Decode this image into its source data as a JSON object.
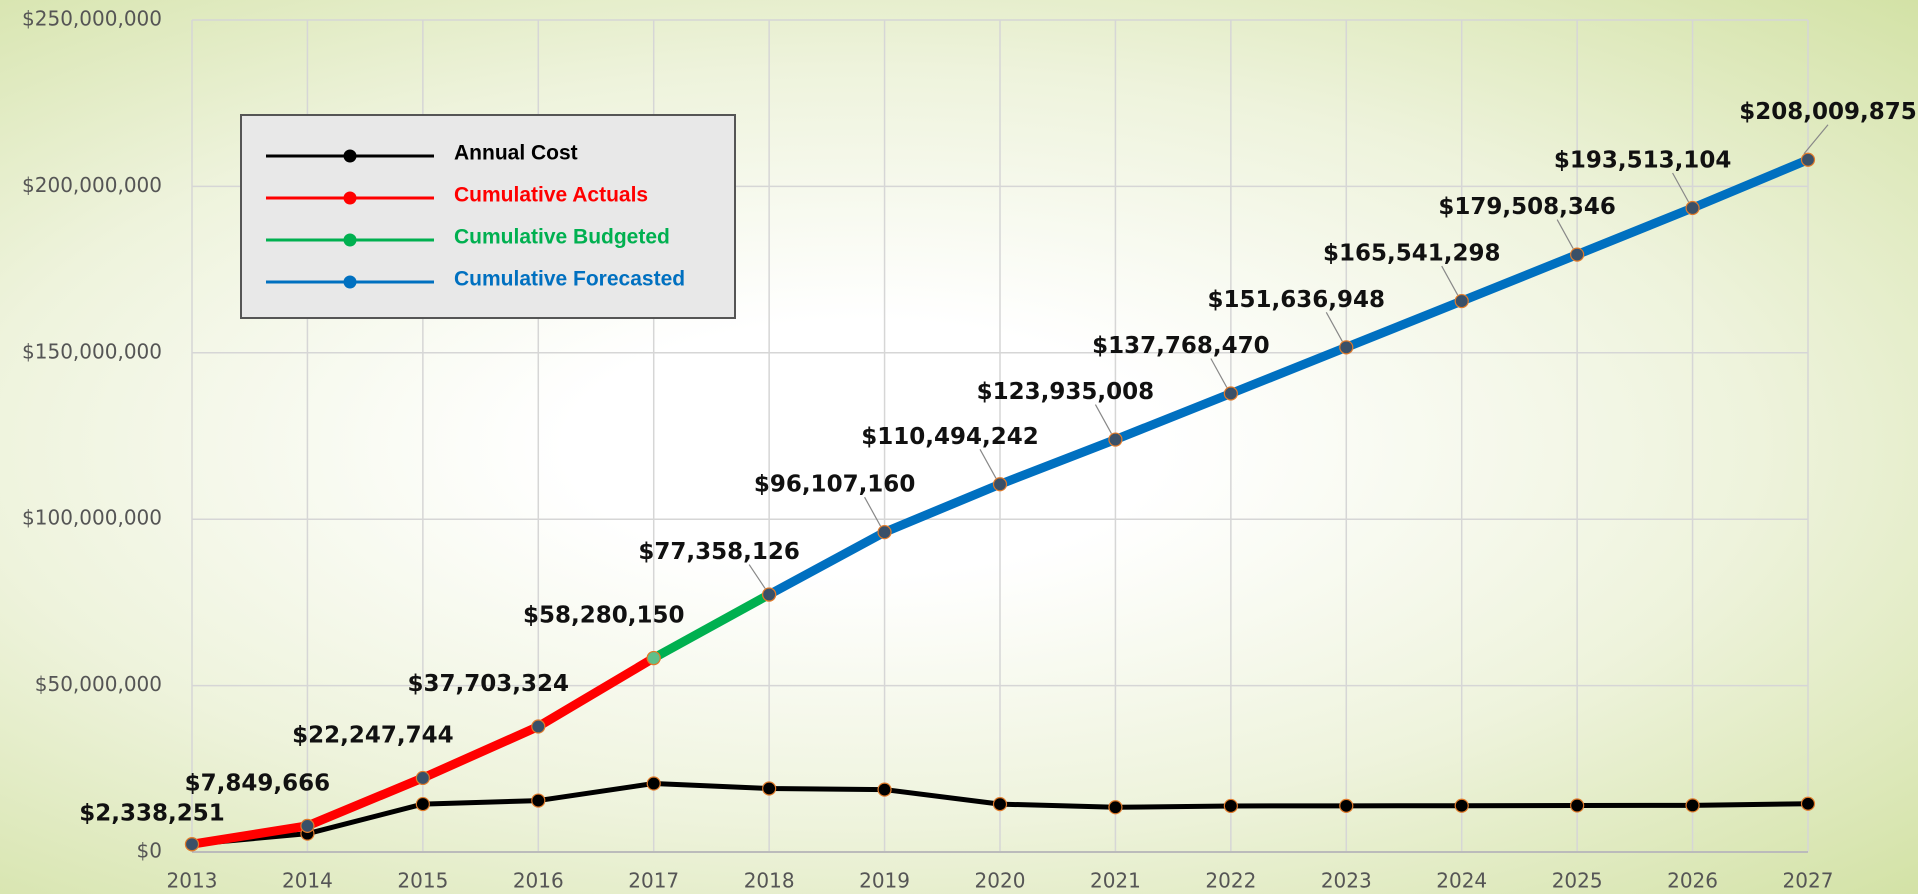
{
  "chart_data": {
    "type": "line",
    "categories": [
      "2013",
      "2014",
      "2015",
      "2016",
      "2017",
      "2018",
      "2019",
      "2020",
      "2021",
      "2022",
      "2023",
      "2024",
      "2025",
      "2026",
      "2027"
    ],
    "series": [
      {
        "name": "Annual Cost",
        "color": "#000000",
        "values": [
          2338251,
          5511415,
          14398078,
          15455580,
          20576826,
          19077976,
          18749034,
          14387082,
          13440766,
          13833462,
          13868478,
          13904350,
          13967048,
          14004758,
          14496771
        ]
      },
      {
        "name": "Cumulative Actuals",
        "color": "#ff0000",
        "values": [
          2338251,
          7849666,
          22247744,
          37703324,
          58280150,
          null,
          null,
          null,
          null,
          null,
          null,
          null,
          null,
          null,
          null
        ],
        "value_labels": [
          "$2,338,251",
          "$7,849,666",
          "$22,247,744",
          "$37,703,324",
          "$58,280,150",
          null,
          null,
          null,
          null,
          null,
          null,
          null,
          null,
          null,
          null
        ]
      },
      {
        "name": "Cumulative Budgeted",
        "color": "#00b050",
        "values": [
          null,
          null,
          null,
          null,
          58280150,
          77358126,
          null,
          null,
          null,
          null,
          null,
          null,
          null,
          null,
          null
        ],
        "value_labels": [
          null,
          null,
          null,
          null,
          null,
          "$77,358,126",
          null,
          null,
          null,
          null,
          null,
          null,
          null,
          null,
          null
        ]
      },
      {
        "name": "Cumulative Forecasted",
        "color": "#0070c0",
        "values": [
          null,
          null,
          null,
          null,
          null,
          77358126,
          96107160,
          110494242,
          123935008,
          137768470,
          151636948,
          165541298,
          179508346,
          193513104,
          208009875
        ],
        "value_labels": [
          null,
          null,
          null,
          null,
          null,
          null,
          "$96,107,160",
          "$110,494,242",
          "$123,935,008",
          "$137,768,470",
          "$151,636,948",
          "$165,541,298",
          "$179,508,346",
          "$193,513,104",
          "$208,009,875"
        ]
      }
    ],
    "ylim": [
      0,
      250000000
    ],
    "yticks": [
      {
        "value": 0,
        "label": "$0"
      },
      {
        "value": 50000000,
        "label": "$50,000,000"
      },
      {
        "value": 100000000,
        "label": "$100,000,000"
      },
      {
        "value": 150000000,
        "label": "$150,000,000"
      },
      {
        "value": 200000000,
        "label": "$200,000,000"
      },
      {
        "value": 250000000,
        "label": "$250,000,000"
      }
    ],
    "grid": true,
    "legend": "upper left"
  }
}
